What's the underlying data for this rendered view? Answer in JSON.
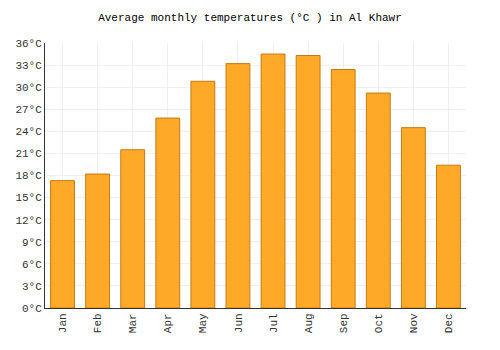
{
  "chart_data": {
    "type": "bar",
    "title": "Average monthly temperatures (°C ) in Al Khawr",
    "categories": [
      "Jan",
      "Feb",
      "Mar",
      "Apr",
      "May",
      "Jun",
      "Jul",
      "Aug",
      "Sep",
      "Oct",
      "Nov",
      "Dec"
    ],
    "values": [
      17.3,
      18.2,
      21.5,
      25.8,
      30.8,
      33.2,
      34.5,
      34.3,
      32.4,
      29.2,
      24.5,
      19.4
    ],
    "color": "#ffa929",
    "ylim": [
      0,
      36
    ],
    "yticks": [
      {
        "value": 0,
        "label": "0°C"
      },
      {
        "value": 3,
        "label": "3°C"
      },
      {
        "value": 6,
        "label": "6°C"
      },
      {
        "value": 9,
        "label": "9°C"
      },
      {
        "value": 12,
        "label": "12°C"
      },
      {
        "value": 15,
        "label": "15°C"
      },
      {
        "value": 18,
        "label": "18°C"
      },
      {
        "value": 21,
        "label": "21°C"
      },
      {
        "value": 24,
        "label": "24°C"
      },
      {
        "value": 27,
        "label": "27°C"
      },
      {
        "value": 30,
        "label": "30°C"
      },
      {
        "value": 33,
        "label": "33°C"
      },
      {
        "value": 36,
        "label": "36°C"
      }
    ],
    "grid": true
  }
}
